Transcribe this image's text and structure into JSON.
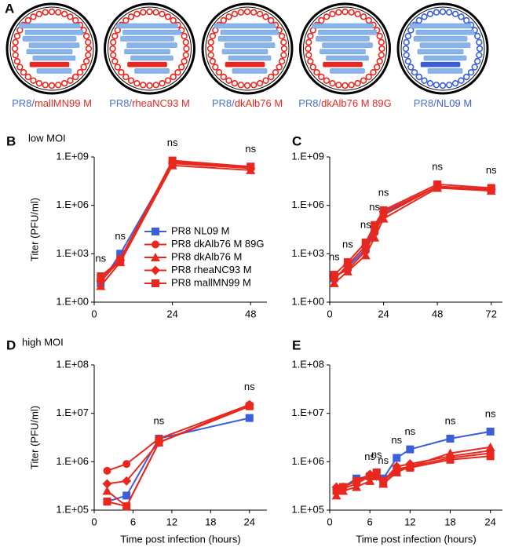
{
  "panel_a": {
    "letter": "A",
    "viruses": [
      {
        "prefix": "PR8/",
        "name": "mallMN99 M",
        "color": "#e8281e"
      },
      {
        "prefix": "PR8/",
        "name": "rheaNC93 M",
        "color": "#e8281e"
      },
      {
        "prefix": "PR8/",
        "name": "dkAlb76 M",
        "color": "#e8281e"
      },
      {
        "prefix": "PR8/",
        "name": "dkAlb76 M 89G",
        "color": "#e8281e"
      },
      {
        "prefix": "PR8/",
        "name": "NL09 M",
        "color": "#3a5fd8"
      }
    ]
  },
  "chart_data": [
    {
      "type": "line",
      "panel": "B",
      "subtitle": "low MOI",
      "y_label": "Titer (PFU/ml)",
      "log_y": true,
      "legend": "lower center",
      "x": [
        2,
        8,
        24,
        48
      ],
      "xlim": [
        0,
        53
      ],
      "xticks": [
        0,
        24,
        48
      ],
      "ylim": [
        1,
        1000000000
      ],
      "yticks": [
        {
          "value": 1,
          "label": "1.E+00"
        },
        {
          "value": 1000,
          "label": "1.E+03"
        },
        {
          "value": 1000000,
          "label": "1.E+06"
        },
        {
          "value": 1000000000,
          "label": "1.E+09"
        }
      ],
      "series": [
        {
          "name": "PR8 NL09 M",
          "color": "#3a5fd8",
          "marker": "square",
          "values": [
            15,
            1000,
            400000000,
            250000000
          ]
        },
        {
          "name": "PR8 dkAlb76 M 89G",
          "color": "#e8281e",
          "marker": "circle",
          "values": [
            30,
            500,
            500000000,
            200000000
          ]
        },
        {
          "name": "PR8 dkAlb76 M",
          "color": "#e8281e",
          "marker": "triangle",
          "values": [
            10,
            300,
            300000000,
            150000000
          ]
        },
        {
          "name": "PR8 rheaNC93 M",
          "color": "#e8281e",
          "marker": "diamond",
          "values": [
            20,
            400,
            400000000,
            200000000
          ]
        },
        {
          "name": "PR8 mallMN99 M",
          "color": "#e8281e",
          "marker": "square",
          "values": [
            40,
            400,
            600000000,
            250000000
          ]
        }
      ],
      "annotations": [
        {
          "x": 2,
          "text": "ns"
        },
        {
          "x": 8,
          "text": "ns"
        },
        {
          "x": 24,
          "text": "ns"
        },
        {
          "x": 48,
          "text": "ns"
        }
      ]
    },
    {
      "type": "line",
      "panel": "C",
      "log_y": true,
      "x": [
        2,
        8,
        16,
        20,
        24,
        48,
        72
      ],
      "xlim": [
        0,
        77
      ],
      "xticks": [
        0,
        24,
        48,
        72
      ],
      "ylim": [
        1,
        1000000000
      ],
      "yticks": [
        {
          "value": 1,
          "label": "1.E+00"
        },
        {
          "value": 1000,
          "label": "1.E+03"
        },
        {
          "value": 1000000,
          "label": "1.E+06"
        },
        {
          "value": 1000000000,
          "label": "1.E+09"
        }
      ],
      "series": [
        {
          "name": "PR8 NL09 M",
          "color": "#3a5fd8",
          "marker": "square",
          "values": [
            30,
            150,
            2000,
            30000,
            300000,
            15000000,
            10000000
          ]
        },
        {
          "name": "PR8 dkAlb76 M 89G",
          "color": "#e8281e",
          "marker": "circle",
          "values": [
            40,
            100,
            1500,
            20000,
            250000,
            15000000,
            8000000
          ]
        },
        {
          "name": "PR8 dkAlb76 M",
          "color": "#e8281e",
          "marker": "triangle",
          "values": [
            15,
            80,
            800,
            10000,
            150000,
            12000000,
            8000000
          ]
        },
        {
          "name": "PR8 rheaNC93 M",
          "color": "#e8281e",
          "marker": "diamond",
          "values": [
            25,
            200,
            3000,
            40000,
            400000,
            15000000,
            10000000
          ]
        },
        {
          "name": "PR8 mallMN99 M",
          "color": "#e8281e",
          "marker": "square",
          "values": [
            50,
            300,
            5000,
            60000,
            500000,
            20000000,
            12000000
          ]
        }
      ],
      "annotations": [
        {
          "x": 2,
          "text": "ns"
        },
        {
          "x": 8,
          "text": "ns"
        },
        {
          "x": 16,
          "text": "ns"
        },
        {
          "x": 20,
          "text": "ns"
        },
        {
          "x": 24,
          "text": "ns"
        },
        {
          "x": 48,
          "text": "ns"
        },
        {
          "x": 72,
          "text": "ns"
        }
      ]
    },
    {
      "type": "line",
      "panel": "D",
      "subtitle": "high MOI",
      "y_label": "Titer (PFU/ml)",
      "x_label": "Time post infection (hours)",
      "log_y": true,
      "x": [
        2,
        5,
        10,
        24
      ],
      "xlim": [
        0,
        26.7
      ],
      "xticks": [
        0,
        6,
        12,
        18,
        24
      ],
      "ylim": [
        100000,
        100000000
      ],
      "yticks": [
        {
          "value": 100000,
          "label": "1.E+05"
        },
        {
          "value": 1000000,
          "label": "1.E+06"
        },
        {
          "value": 10000000,
          "label": "1.E+07"
        },
        {
          "value": 100000000,
          "label": "1.E+08"
        }
      ],
      "series": [
        {
          "name": "PR8 NL09 M",
          "color": "#3a5fd8",
          "marker": "square",
          "values": [
            150000,
            200000,
            3000000,
            8000000
          ]
        },
        {
          "name": "PR8 dkAlb76 M 89G",
          "color": "#e8281e",
          "marker": "circle",
          "values": [
            650000,
            900000,
            3000000,
            15000000
          ]
        },
        {
          "name": "PR8 dkAlb76 M",
          "color": "#e8281e",
          "marker": "triangle",
          "values": [
            250000,
            120000,
            2500000,
            15000000
          ]
        },
        {
          "name": "PR8 rheaNC93 M",
          "color": "#e8281e",
          "marker": "diamond",
          "values": [
            350000,
            400000,
            2500000,
            15000000
          ]
        },
        {
          "name": "PR8 mallMN99 M",
          "color": "#e8281e",
          "marker": "square",
          "values": [
            150000,
            120000,
            2500000,
            14000000
          ]
        }
      ],
      "annotations": [
        {
          "x": 10,
          "text": "ns"
        },
        {
          "x": 24,
          "text": "ns"
        }
      ]
    },
    {
      "type": "line",
      "panel": "E",
      "x_label": "Time post infection (hours)",
      "log_y": true,
      "x": [
        1,
        2,
        4,
        6,
        7,
        8,
        10,
        12,
        18,
        24
      ],
      "xlim": [
        0,
        25.8
      ],
      "xticks": [
        0,
        6,
        12,
        18,
        24
      ],
      "ylim": [
        100000,
        100000000
      ],
      "yticks": [
        {
          "value": 100000,
          "label": "1.E+05"
        },
        {
          "value": 1000000,
          "label": "1.E+06"
        },
        {
          "value": 10000000,
          "label": "1.E+07"
        },
        {
          "value": 100000000,
          "label": "1.E+08"
        }
      ],
      "series": [
        {
          "name": "PR8 NL09 M",
          "color": "#3a5fd8",
          "marker": "square",
          "values": [
            250000,
            300000,
            450000,
            500000,
            600000,
            450000,
            1200000,
            1800000,
            3000000,
            4200000
          ]
        },
        {
          "name": "PR8 dkAlb76 M 89G",
          "color": "#e8281e",
          "marker": "circle",
          "values": [
            250000,
            280000,
            350000,
            500000,
            550000,
            400000,
            700000,
            800000,
            1200000,
            1500000
          ]
        },
        {
          "name": "PR8 dkAlb76 M",
          "color": "#e8281e",
          "marker": "triangle",
          "values": [
            200000,
            250000,
            300000,
            400000,
            500000,
            350000,
            600000,
            800000,
            1500000,
            2000000
          ]
        },
        {
          "name": "PR8 rheaNC93 M",
          "color": "#e8281e",
          "marker": "diamond",
          "values": [
            300000,
            300000,
            400000,
            550000,
            500000,
            400000,
            800000,
            900000,
            1300000,
            1700000
          ]
        },
        {
          "name": "PR8 mallMN99 M",
          "color": "#e8281e",
          "marker": "square",
          "values": [
            250000,
            300000,
            400000,
            500000,
            600000,
            350000,
            650000,
            750000,
            1100000,
            1300000
          ]
        }
      ],
      "annotations": [
        {
          "x": 6,
          "text": "ns"
        },
        {
          "x": 7,
          "text": "ns"
        },
        {
          "x": 8,
          "text": "ns"
        },
        {
          "x": 10,
          "text": "ns"
        },
        {
          "x": 12,
          "text": "ns"
        },
        {
          "x": 18,
          "text": "ns"
        },
        {
          "x": 24,
          "text": "ns"
        }
      ]
    }
  ]
}
